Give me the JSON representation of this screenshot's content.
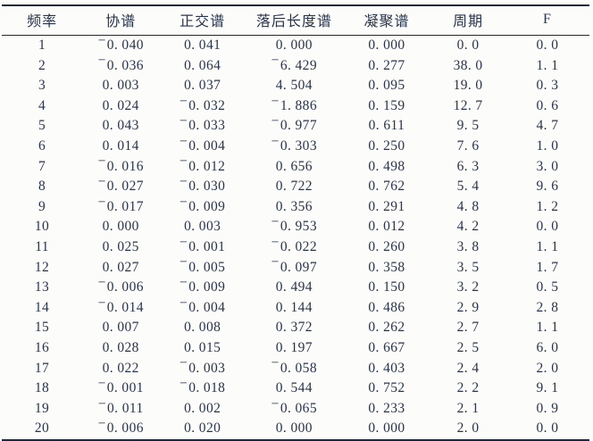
{
  "colors": {
    "background": "#fcfcfa",
    "text": "#28344c",
    "table_rules": "#1e2940"
  },
  "table": {
    "columns": [
      "频率",
      "协谱",
      "正交谱",
      "落后长度谱",
      "凝聚谱",
      "周期",
      "F"
    ],
    "rows": [
      [
        "1",
        "−0. 040",
        "0. 041",
        "0. 000",
        "0. 000",
        "0. 0",
        "0. 0"
      ],
      [
        "2",
        "−0. 036",
        "0. 064",
        "−6. 429",
        "0. 277",
        "38. 0",
        "1. 1"
      ],
      [
        "3",
        "0. 003",
        "0. 037",
        "4. 504",
        "0. 095",
        "19. 0",
        "0. 3"
      ],
      [
        "4",
        "0. 024",
        "−0. 032",
        "−1. 886",
        "0. 159",
        "12. 7",
        "0. 6"
      ],
      [
        "5",
        "0. 043",
        "−0. 033",
        "−0. 977",
        "0. 611",
        "9. 5",
        "4. 7"
      ],
      [
        "6",
        "0. 014",
        "−0. 004",
        "−0. 303",
        "0. 250",
        "7. 6",
        "1. 0"
      ],
      [
        "7",
        "−0. 016",
        "−0. 012",
        "0. 656",
        "0. 498",
        "6. 3",
        "3. 0"
      ],
      [
        "8",
        "−0. 027",
        "−0. 030",
        "0. 722",
        "0. 762",
        "5. 4",
        "9. 6"
      ],
      [
        "9",
        "−0. 017",
        "−0. 009",
        "0. 356",
        "0. 291",
        "4. 8",
        "1. 2"
      ],
      [
        "10",
        "0. 000",
        "0. 003",
        "−0. 953",
        "0. 012",
        "4. 2",
        "0. 0"
      ],
      [
        "11",
        "0. 025",
        "−0. 001",
        "−0. 022",
        "0. 260",
        "3. 8",
        "1. 1"
      ],
      [
        "12",
        "0. 027",
        "−0. 005",
        "−0. 097",
        "0. 358",
        "3. 5",
        "1. 7"
      ],
      [
        "13",
        "−0. 006",
        "−0. 009",
        "0. 494",
        "0. 150",
        "3. 2",
        "0. 5"
      ],
      [
        "14",
        "−0. 014",
        "−0. 004",
        "0. 144",
        "0. 486",
        "2. 9",
        "2. 8"
      ],
      [
        "15",
        "0. 007",
        "0. 008",
        "0. 372",
        "0. 262",
        "2. 7",
        "1. 1"
      ],
      [
        "16",
        "0. 028",
        "0. 015",
        "0. 197",
        "0. 667",
        "2. 5",
        "6. 0"
      ],
      [
        "17",
        "0. 022",
        "−0. 003",
        "−0. 058",
        "0. 403",
        "2. 4",
        "2. 0"
      ],
      [
        "18",
        "−0. 001",
        "−0. 018",
        "0. 544",
        "0. 752",
        "2. 2",
        "9. 1"
      ],
      [
        "19",
        "−0. 011",
        "0. 002",
        "−0. 065",
        "0. 233",
        "2. 1",
        "0. 9"
      ],
      [
        "20",
        "−0. 006",
        "0. 020",
        "0. 000",
        "0. 000",
        "2. 0",
        "0. 0"
      ]
    ]
  }
}
